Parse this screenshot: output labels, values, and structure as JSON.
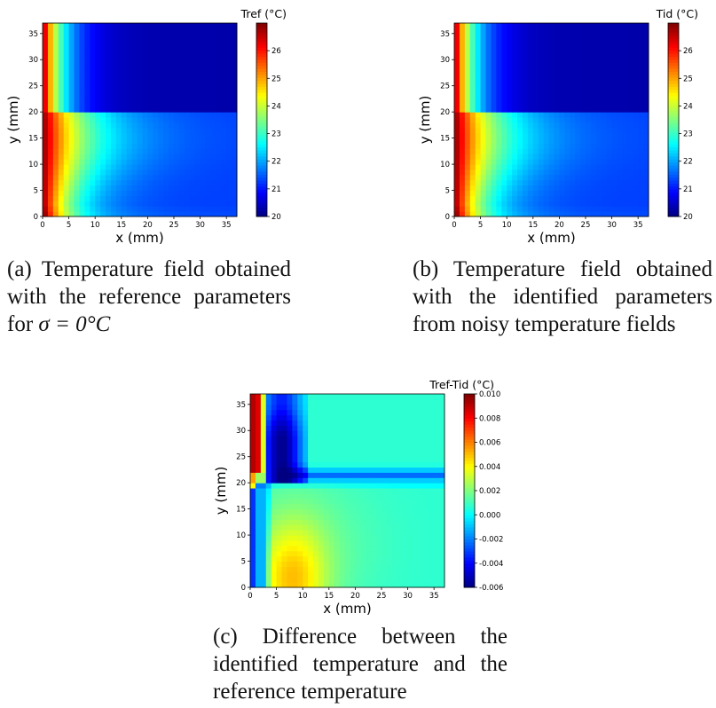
{
  "figure": {
    "panel_a": {
      "colorbar_label": "Tref (°C)",
      "xlabel": "x (mm)",
      "ylabel": "y (mm)",
      "caption_lines": [
        "(a) Temperature field obtained",
        "with the reference parameters"
      ],
      "caption_math_prefix": "for ",
      "caption_math": "σ = 0°C"
    },
    "panel_b": {
      "colorbar_label": "Tid (°C)",
      "xlabel": "x (mm)",
      "ylabel": "y (mm)",
      "caption_lines": [
        "(b) Temperature field obtained",
        "with the identified parameters",
        "from noisy temperature fields"
      ]
    },
    "panel_c": {
      "colorbar_label": "Tref-Tid (°C)",
      "xlabel": "x (mm)",
      "ylabel": "y (mm)",
      "caption_lines": [
        "(c) Difference between the",
        "identified temperature and the",
        "reference temperature"
      ]
    }
  },
  "chart_data": [
    {
      "type": "heatmap",
      "title": "",
      "xlabel": "x (mm)",
      "ylabel": "y (mm)",
      "colorbar_label": "Tref (°C)",
      "xlim": [
        0,
        37
      ],
      "ylim": [
        0,
        37
      ],
      "xticks": [
        0,
        5,
        10,
        15,
        20,
        25,
        30,
        35
      ],
      "yticks": [
        0,
        5,
        10,
        15,
        20,
        25,
        30,
        35
      ],
      "colorbar_range": [
        20,
        27
      ],
      "colorbar_ticks": [
        20,
        21,
        22,
        23,
        24,
        25,
        26
      ],
      "colormap": "jet",
      "description_values": {
        "x0_max": 27.0,
        "far_top": 20.3,
        "far_bottom": 21.3,
        "interface_y": 20
      }
    },
    {
      "type": "heatmap",
      "title": "",
      "xlabel": "x (mm)",
      "ylabel": "y (mm)",
      "colorbar_label": "Tid (°C)",
      "xlim": [
        0,
        37
      ],
      "ylim": [
        0,
        37
      ],
      "xticks": [
        0,
        5,
        10,
        15,
        20,
        25,
        30,
        35
      ],
      "yticks": [
        0,
        5,
        10,
        15,
        20,
        25,
        30,
        35
      ],
      "colorbar_range": [
        20,
        27
      ],
      "colorbar_ticks": [
        20,
        21,
        22,
        23,
        24,
        25,
        26
      ],
      "colormap": "jet",
      "description_values": {
        "x0_max": 27.0,
        "far_top": 20.3,
        "far_bottom": 21.3,
        "interface_y": 20
      }
    },
    {
      "type": "heatmap",
      "title": "",
      "xlabel": "x (mm)",
      "ylabel": "y (mm)",
      "colorbar_label": "Tref-Tid (°C)",
      "xlim": [
        0,
        37
      ],
      "ylim": [
        0,
        37
      ],
      "xticks": [
        0,
        5,
        10,
        15,
        20,
        25,
        30,
        35
      ],
      "yticks": [
        0,
        5,
        10,
        15,
        20,
        25,
        30,
        35
      ],
      "colorbar_range": [
        -0.006,
        0.01
      ],
      "colorbar_ticks": [
        "-0.006",
        "-0.004",
        "-0.002",
        "0.000",
        "0.002",
        "0.004",
        "0.006",
        "0.008",
        "0.010"
      ],
      "colormap": "jet",
      "description_values": {
        "left_column_top": 0.009,
        "min_region": -0.0055,
        "bottom_peak": 0.0035,
        "background": 0.0007
      }
    }
  ]
}
